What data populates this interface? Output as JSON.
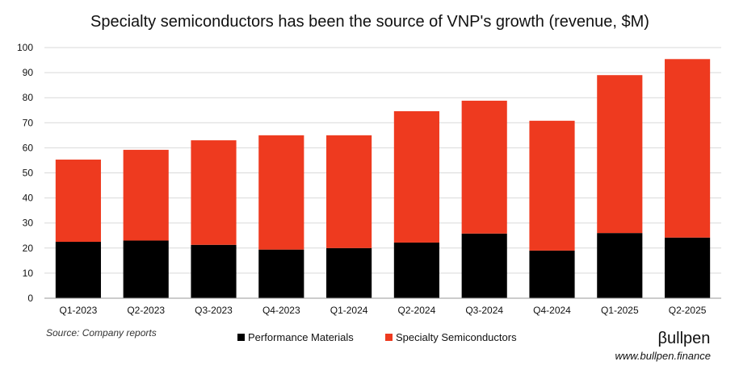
{
  "chart_data": {
    "type": "bar",
    "stacked": true,
    "title": "Specialty semiconductors has been the source of VNP's growth (revenue, $M)",
    "xlabel": "",
    "ylabel": "",
    "ylim": [
      0,
      100
    ],
    "yticks": [
      0,
      10,
      20,
      30,
      40,
      50,
      60,
      70,
      80,
      90,
      100
    ],
    "grid": true,
    "legend_position": "bottom",
    "categories": [
      "Q1-2023",
      "Q2-2023",
      "Q3-2023",
      "Q4-2023",
      "Q1-2024",
      "Q2-2024",
      "Q3-2024",
      "Q4-2024",
      "Q1-2025",
      "Q2-2025"
    ],
    "series": [
      {
        "name": "Performance Materials",
        "color": "#000000",
        "values": [
          22.5,
          23.0,
          21.3,
          19.4,
          20.0,
          22.2,
          25.8,
          19.0,
          26.0,
          24.2
        ]
      },
      {
        "name": "Specialty Semiconductors",
        "color": "#ee3a1f",
        "values": [
          32.8,
          36.2,
          41.7,
          45.6,
          45.0,
          52.4,
          53.0,
          51.8,
          63.0,
          71.2
        ]
      }
    ]
  },
  "footer": {
    "source": "Source: Company reports",
    "brand": "Bullpen",
    "brand_display": "βullpen",
    "website": "www.bullpen.finance"
  }
}
